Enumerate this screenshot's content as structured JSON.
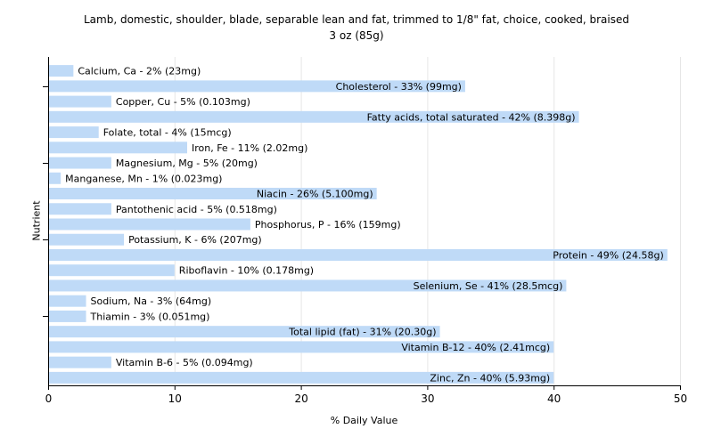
{
  "chart_data": {
    "type": "bar",
    "orientation": "horizontal",
    "title": "Lamb, domestic, shoulder, blade, separable lean and fat, trimmed to 1/8\" fat, choice, cooked, braised",
    "subtitle": "3 oz (85g)",
    "xlabel": "% Daily Value",
    "ylabel": "Nutrient",
    "xlim": [
      0,
      50
    ],
    "xticks": [
      0,
      10,
      20,
      30,
      40,
      50
    ],
    "grid": true,
    "bar_color": "#bfdaf7",
    "categories": [
      "Calcium, Ca",
      "Cholesterol",
      "Copper, Cu",
      "Fatty acids, total saturated",
      "Folate, total",
      "Iron, Fe",
      "Magnesium, Mg",
      "Manganese, Mn",
      "Niacin",
      "Pantothenic acid",
      "Phosphorus, P",
      "Potassium, K",
      "Protein",
      "Riboflavin",
      "Selenium, Se",
      "Sodium, Na",
      "Thiamin",
      "Total lipid (fat)",
      "Vitamin B-12",
      "Vitamin B-6",
      "Zinc, Zn"
    ],
    "values": [
      2,
      33,
      5,
      42,
      4,
      11,
      5,
      1,
      26,
      5,
      16,
      6,
      49,
      10,
      41,
      3,
      3,
      31,
      40,
      5,
      40
    ],
    "labels": [
      "Calcium, Ca - 2% (23mg)",
      "Cholesterol - 33% (99mg)",
      "Copper, Cu - 5% (0.103mg)",
      "Fatty acids, total saturated - 42% (8.398g)",
      "Folate, total - 4% (15mcg)",
      "Iron, Fe - 11% (2.02mg)",
      "Magnesium, Mg - 5% (20mg)",
      "Manganese, Mn - 1% (0.023mg)",
      "Niacin - 26% (5.100mg)",
      "Pantothenic acid - 5% (0.518mg)",
      "Phosphorus, P - 16% (159mg)",
      "Potassium, K - 6% (207mg)",
      "Protein - 49% (24.58g)",
      "Riboflavin - 10% (0.178mg)",
      "Selenium, Se - 41% (28.5mcg)",
      "Sodium, Na - 3% (64mg)",
      "Thiamin - 3% (0.051mg)",
      "Total lipid (fat) - 31% (20.30g)",
      "Vitamin B-12 - 40% (2.41mcg)",
      "Vitamin B-6 - 5% (0.094mg)",
      "Zinc, Zn - 40% (5.93mg)"
    ]
  }
}
